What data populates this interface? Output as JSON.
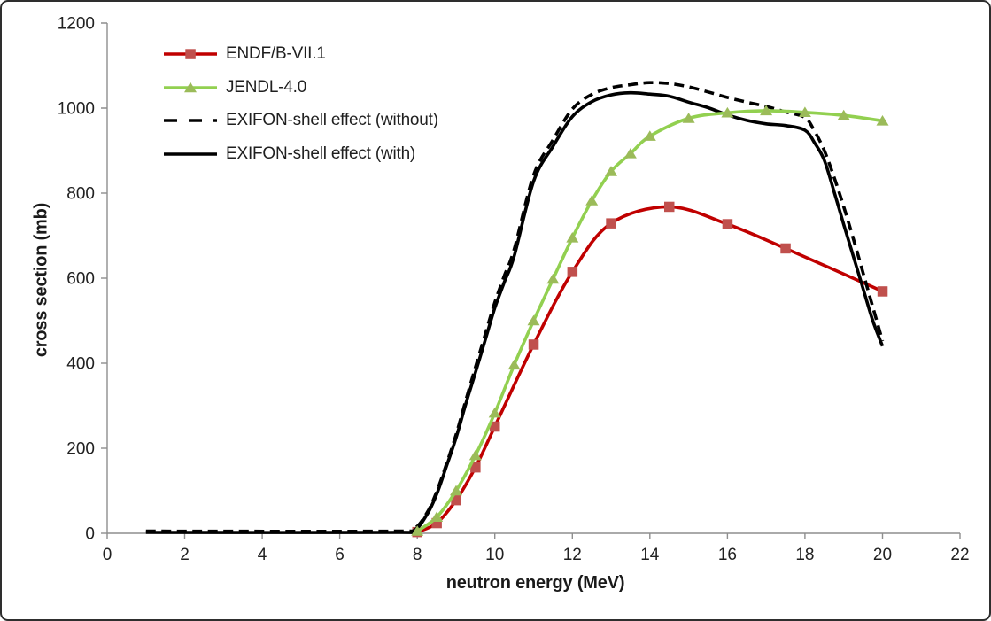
{
  "chart_data": {
    "type": "line",
    "title": "",
    "xlabel": "neutron energy (MeV)",
    "ylabel": "cross section (mb)",
    "xlim": [
      0,
      22
    ],
    "ylim": [
      0,
      1200
    ],
    "xticks": [
      0,
      2,
      4,
      6,
      8,
      10,
      12,
      14,
      16,
      18,
      20,
      22
    ],
    "yticks": [
      0,
      200,
      400,
      600,
      800,
      1000,
      1200
    ],
    "grid": false,
    "legend_position": "top-left inside plot area",
    "colors": {
      "axis": "#8E8E8E",
      "text": "#212121"
    },
    "series": [
      {
        "id": "endf-b-vii-1",
        "name": "ENDF/B-VII.1",
        "color": "#C00000",
        "marker": "square",
        "marker_color": "#C0504D",
        "line_style": "solid",
        "x": [
          8,
          8.5,
          9,
          9.5,
          10,
          11,
          12,
          13,
          14.5,
          16,
          17.5,
          20
        ],
        "y": [
          3,
          24,
          78,
          155,
          251,
          444,
          615,
          729,
          768,
          727,
          670,
          569
        ]
      },
      {
        "id": "jendl-4-0",
        "name": "JENDL-4.0",
        "color": "#92D050",
        "marker": "triangle",
        "marker_color": "#9BBB59",
        "line_style": "solid",
        "x": [
          8,
          8.5,
          9,
          9.5,
          10,
          10.5,
          11,
          11.5,
          12,
          12.5,
          13,
          13.5,
          14,
          15,
          16,
          17,
          18,
          19,
          20
        ],
        "y": [
          5,
          38,
          100,
          183,
          283,
          396,
          500,
          598,
          695,
          782,
          851,
          893,
          934,
          976,
          989,
          994,
          990,
          983,
          970
        ]
      },
      {
        "id": "exifon-shell-effect-without",
        "name": "EXIFON-shell effect (without)",
        "color": "#000000",
        "marker": "none",
        "line_style": "dashed",
        "x": [
          1,
          7.3,
          7.9,
          8.25,
          8.5,
          8.75,
          9,
          9.25,
          9.5,
          9.75,
          10,
          10.25,
          10.5,
          11,
          11.5,
          12,
          12.5,
          13,
          13.5,
          14,
          14.5,
          15,
          15.5,
          16,
          16.5,
          17,
          17.5,
          18,
          18.25,
          18.5,
          18.75,
          19,
          19.25,
          19.5,
          19.75,
          20
        ],
        "y": [
          5,
          5,
          10,
          48,
          98,
          162,
          232,
          312,
          390,
          467,
          543,
          607,
          668,
          842,
          925,
          998,
          1032,
          1048,
          1055,
          1060,
          1058,
          1050,
          1038,
          1025,
          1014,
          1004,
          991,
          978,
          945,
          900,
          838,
          768,
          692,
          612,
          532,
          452
        ]
      },
      {
        "id": "exifon-shell-effect-with",
        "name": "EXIFON-shell effect (with)",
        "color": "#000000",
        "marker": "none",
        "line_style": "solid",
        "x": [
          1,
          7.3,
          7.9,
          8.25,
          8.5,
          8.75,
          9,
          9.25,
          9.5,
          9.75,
          10,
          10.25,
          10.5,
          11,
          11.5,
          12,
          12.5,
          13,
          13.5,
          14,
          14.5,
          15,
          15.5,
          16,
          16.5,
          17,
          17.5,
          18,
          18.25,
          18.5,
          18.75,
          19,
          19.25,
          19.5,
          19.75,
          20
        ],
        "y": [
          2,
          2,
          6,
          44,
          92,
          157,
          225,
          304,
          378,
          454,
          530,
          592,
          652,
          828,
          910,
          980,
          1015,
          1031,
          1036,
          1033,
          1028,
          1014,
          1001,
          984,
          971,
          963,
          959,
          948,
          918,
          877,
          804,
          726,
          651,
          575,
          500,
          440
        ]
      }
    ],
    "draw_order": [
      "endf-b-vii-1",
      "exifon-shell-effect-without",
      "exifon-shell-effect-with",
      "jendl-4-0"
    ]
  }
}
